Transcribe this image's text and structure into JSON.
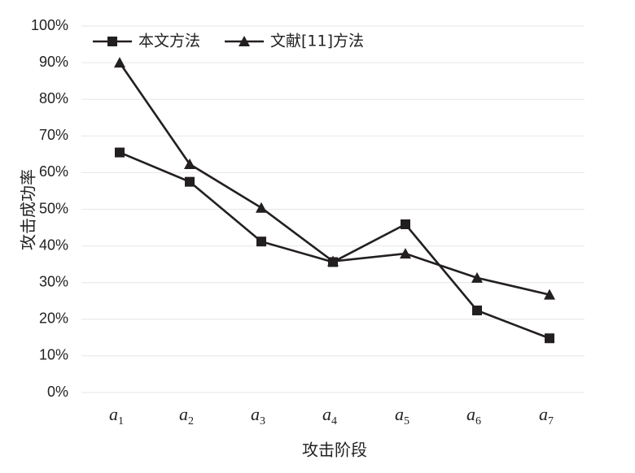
{
  "chart_data": {
    "type": "line",
    "categories": [
      {
        "base": "a",
        "sub": "1"
      },
      {
        "base": "a",
        "sub": "2"
      },
      {
        "base": "a",
        "sub": "3"
      },
      {
        "base": "a",
        "sub": "4"
      },
      {
        "base": "a",
        "sub": "5"
      },
      {
        "base": "a",
        "sub": "6"
      },
      {
        "base": "a",
        "sub": "7"
      }
    ],
    "series": [
      {
        "name": "本文方法",
        "marker": "square",
        "color": "#231f20",
        "values": [
          65.5,
          57.5,
          41.2,
          35.6,
          45.9,
          22.4,
          14.8
        ]
      },
      {
        "name": "文献[11]方法",
        "marker": "triangle",
        "color": "#231f20",
        "values": [
          90.0,
          62.3,
          50.4,
          35.8,
          37.9,
          31.3,
          26.7
        ]
      }
    ],
    "ylabel": "攻击成功率",
    "xlabel": "攻击阶段",
    "ylim": [
      0,
      100
    ],
    "yticks": [
      "0%",
      "10%",
      "20%",
      "30%",
      "40%",
      "50%",
      "60%",
      "70%",
      "80%",
      "90%",
      "100%"
    ],
    "grid": true,
    "legend": "top-left"
  }
}
